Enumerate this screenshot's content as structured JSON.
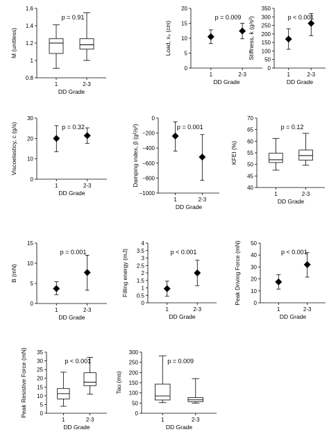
{
  "chart_data": [
    {
      "type": "box",
      "ylabel": "M (unitless)",
      "xlabel": "DD Grade",
      "annotation": "p = 0.91",
      "categories": [
        "1",
        "2-3"
      ],
      "ylim": [
        0.8,
        1.6
      ],
      "yticks": [
        0.8,
        1,
        1.2,
        1.4,
        1.6
      ],
      "ytick_labels": [
        "0.8",
        "1",
        "1.2",
        "1.4",
        "1.6"
      ],
      "boxes": [
        {
          "min": 0.91,
          "q1": 1.08,
          "median": 1.2,
          "q3": 1.25,
          "max": 1.41
        },
        {
          "min": 1.0,
          "q1": 1.13,
          "median": 1.18,
          "q3": 1.25,
          "max": 1.55
        }
      ]
    },
    {
      "type": "point-range",
      "ylabel": "Load, x₀ (cm)",
      "xlabel": "DD Grade",
      "annotation": "p = 0.009",
      "categories": [
        "1",
        "2-3"
      ],
      "ylim": [
        0,
        20
      ],
      "yticks": [
        0,
        5,
        10,
        15,
        20
      ],
      "ytick_labels": [
        "0",
        "5",
        "10",
        "15",
        "20"
      ],
      "points": [
        {
          "value": 10.5,
          "low": 8.2,
          "high": 12.8
        },
        {
          "value": 12.4,
          "low": 9.8,
          "high": 15.0
        }
      ]
    },
    {
      "type": "point-range",
      "ylabel": "Stiffness, k (g/s²)",
      "xlabel": "DD Grade",
      "annotation": "p < 0.001",
      "categories": [
        "1",
        "2-3"
      ],
      "ylim": [
        0,
        350
      ],
      "yticks": [
        0,
        50,
        100,
        150,
        200,
        250,
        300,
        350
      ],
      "ytick_labels": [
        "0",
        "50",
        "100",
        "150",
        "200",
        "250",
        "300",
        "350"
      ],
      "points": [
        {
          "value": 170,
          "low": 110,
          "high": 230
        },
        {
          "value": 262,
          "low": 190,
          "high": 320
        }
      ]
    },
    {
      "type": "point-range",
      "ylabel": "Viscoelasticy, c (g/s)",
      "xlabel": "DD Grade",
      "annotation": "p = 0.32",
      "categories": [
        "1",
        "2-3"
      ],
      "ylim": [
        0,
        30
      ],
      "yticks": [
        0,
        10,
        20,
        30
      ],
      "ytick_labels": [
        "0",
        "10",
        "20",
        "30"
      ],
      "points": [
        {
          "value": 20,
          "low": 13.5,
          "high": 26.3
        },
        {
          "value": 21.4,
          "low": 17.6,
          "high": 25.2
        }
      ]
    },
    {
      "type": "point-range",
      "ylabel": "Damping index, β (g²/s²)",
      "xlabel": "DD Grade",
      "annotation": "p = 0.001",
      "categories": [
        "1",
        "2-3"
      ],
      "ylim": [
        -1000,
        0
      ],
      "yticks": [
        -1000,
        -800,
        -600,
        -400,
        -200,
        0
      ],
      "ytick_labels": [
        "−1000",
        "−800",
        "−600",
        "−400",
        "−200",
        "0"
      ],
      "points": [
        {
          "value": -240,
          "low": -440,
          "high": -50
        },
        {
          "value": -520,
          "low": -830,
          "high": -220
        }
      ]
    },
    {
      "type": "box",
      "ylabel": "KFEI (%)",
      "xlabel": "DD Grade",
      "annotation": "p = 0.12",
      "categories": [
        "1",
        "2-3"
      ],
      "ylim": [
        40,
        70
      ],
      "yticks": [
        40,
        45,
        50,
        55,
        60,
        65,
        70
      ],
      "ytick_labels": [
        "40",
        "45",
        "50",
        "55",
        "60",
        "65",
        "70"
      ],
      "boxes": [
        {
          "min": 47.5,
          "q1": 50.8,
          "median": 52.0,
          "q3": 54.8,
          "max": 61.2
        },
        {
          "min": 49.6,
          "q1": 51.8,
          "median": 53.8,
          "q3": 56.2,
          "max": 63.4
        }
      ]
    },
    {
      "type": "point-range",
      "ylabel": "B (mN)",
      "xlabel": "DD Grade",
      "annotation": "p = 0.001",
      "categories": [
        "1",
        "2-3"
      ],
      "ylim": [
        0,
        15
      ],
      "yticks": [
        0,
        5,
        10,
        15
      ],
      "ytick_labels": [
        "0",
        "5",
        "10",
        "15"
      ],
      "points": [
        {
          "value": 3.7,
          "low": 2.2,
          "high": 5.4
        },
        {
          "value": 7.7,
          "low": 3.3,
          "high": 12.0
        }
      ]
    },
    {
      "type": "point-range",
      "ylabel": "Filling energy (mJ)",
      "xlabel": "DD Grade",
      "annotation": "p < 0.001",
      "categories": [
        "1",
        "2-3"
      ],
      "ylim": [
        0,
        4
      ],
      "yticks": [
        0,
        0.5,
        1,
        1.5,
        2,
        2.5,
        3,
        3.5,
        4
      ],
      "ytick_labels": [
        "0",
        "0.5",
        "1",
        "1.5",
        "2",
        "2.5",
        "3",
        "3.5",
        "4"
      ],
      "points": [
        {
          "value": 0.95,
          "low": 0.45,
          "high": 1.45
        },
        {
          "value": 2.0,
          "low": 1.15,
          "high": 2.85
        }
      ]
    },
    {
      "type": "point-range",
      "ylabel": "Peak Driving Force (mN)",
      "xlabel": "DD Grade",
      "annotation": "p < 0.001",
      "categories": [
        "1",
        "2-3"
      ],
      "ylim": [
        0,
        50
      ],
      "yticks": [
        0,
        10,
        20,
        30,
        40,
        50
      ],
      "ytick_labels": [
        "0",
        "10",
        "20",
        "30",
        "40",
        "50"
      ],
      "points": [
        {
          "value": 17.5,
          "low": 11.5,
          "high": 23.5
        },
        {
          "value": 32,
          "low": 21.5,
          "high": 42
        }
      ]
    },
    {
      "type": "box",
      "ylabel": "Peak Resistive Force (mN)",
      "xlabel": "DD Grade",
      "annotation": "p < 0.001",
      "categories": [
        "1",
        "2-3"
      ],
      "ylim": [
        0,
        35
      ],
      "yticks": [
        0,
        5,
        10,
        15,
        20,
        25,
        30,
        35
      ],
      "ytick_labels": [
        "0",
        "5",
        "10",
        "15",
        "20",
        "25",
        "30",
        "35"
      ],
      "boxes": [
        {
          "min": 4.0,
          "q1": 8.2,
          "median": 11.2,
          "q3": 14.2,
          "max": 23.5
        },
        {
          "min": 11.0,
          "q1": 15.8,
          "median": 17.8,
          "q3": 23.2,
          "max": 32.0
        }
      ]
    },
    {
      "type": "box",
      "ylabel": "Tau (ms)",
      "xlabel": "DD Grade",
      "annotation": "p = 0.009",
      "categories": [
        "1",
        "2-3"
      ],
      "ylim": [
        0,
        300
      ],
      "yticks": [
        0,
        50,
        100,
        150,
        200,
        250,
        300
      ],
      "ytick_labels": [
        "0",
        "50",
        "100",
        "150",
        "200",
        "250",
        "300"
      ],
      "boxes": [
        {
          "min": 52,
          "q1": 65,
          "median": 85,
          "q3": 143,
          "max": 282
        },
        {
          "min": 50,
          "q1": 57,
          "median": 66,
          "q3": 77,
          "max": 170
        }
      ]
    }
  ]
}
